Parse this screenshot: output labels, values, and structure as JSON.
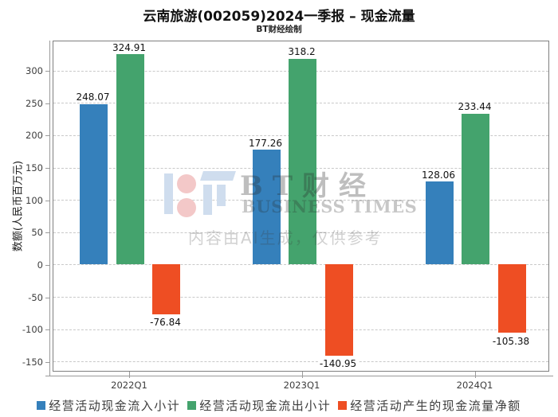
{
  "watermark": {
    "brand_cn": "BT财经",
    "brand_en": "BUSINESS TIMES",
    "ai_note": "内容由AI生成，仅供参考",
    "logo_colors": {
      "bar": "#cfddee",
      "dot": "#f3c8c8"
    }
  },
  "chart_data": {
    "type": "bar",
    "title": "云南旅游(002059)2024一季报 – 现金流量",
    "subtitle": "BT财经绘制",
    "categories": [
      "2022Q1",
      "2023Q1",
      "2024Q1"
    ],
    "series": [
      {
        "name": "经营活动现金流入小计",
        "color": "#3580bb",
        "values": [
          248.07,
          177.26,
          128.06
        ],
        "labels": [
          "248.07",
          "177.26",
          "128.06"
        ]
      },
      {
        "name": "经营活动现金流出小计",
        "color": "#44a36d",
        "values": [
          324.91,
          318.2,
          233.44
        ],
        "labels": [
          "324.91",
          "318.2",
          "233.44"
        ]
      },
      {
        "name": "经营活动产生的现金流量净额",
        "color": "#ee4e23",
        "values": [
          -76.84,
          -140.95,
          -105.38
        ],
        "labels": [
          "-76.84",
          "-140.95",
          "-105.38"
        ]
      }
    ],
    "xlabel": "",
    "ylabel": "数额(人民币百万元)",
    "yticks": [
      300,
      250,
      200,
      150,
      100,
      50,
      0,
      -50,
      -100,
      -150
    ],
    "ylim": [
      -165,
      347
    ],
    "grid": true,
    "grid_style": "dashed",
    "legend_position": "bottom"
  }
}
